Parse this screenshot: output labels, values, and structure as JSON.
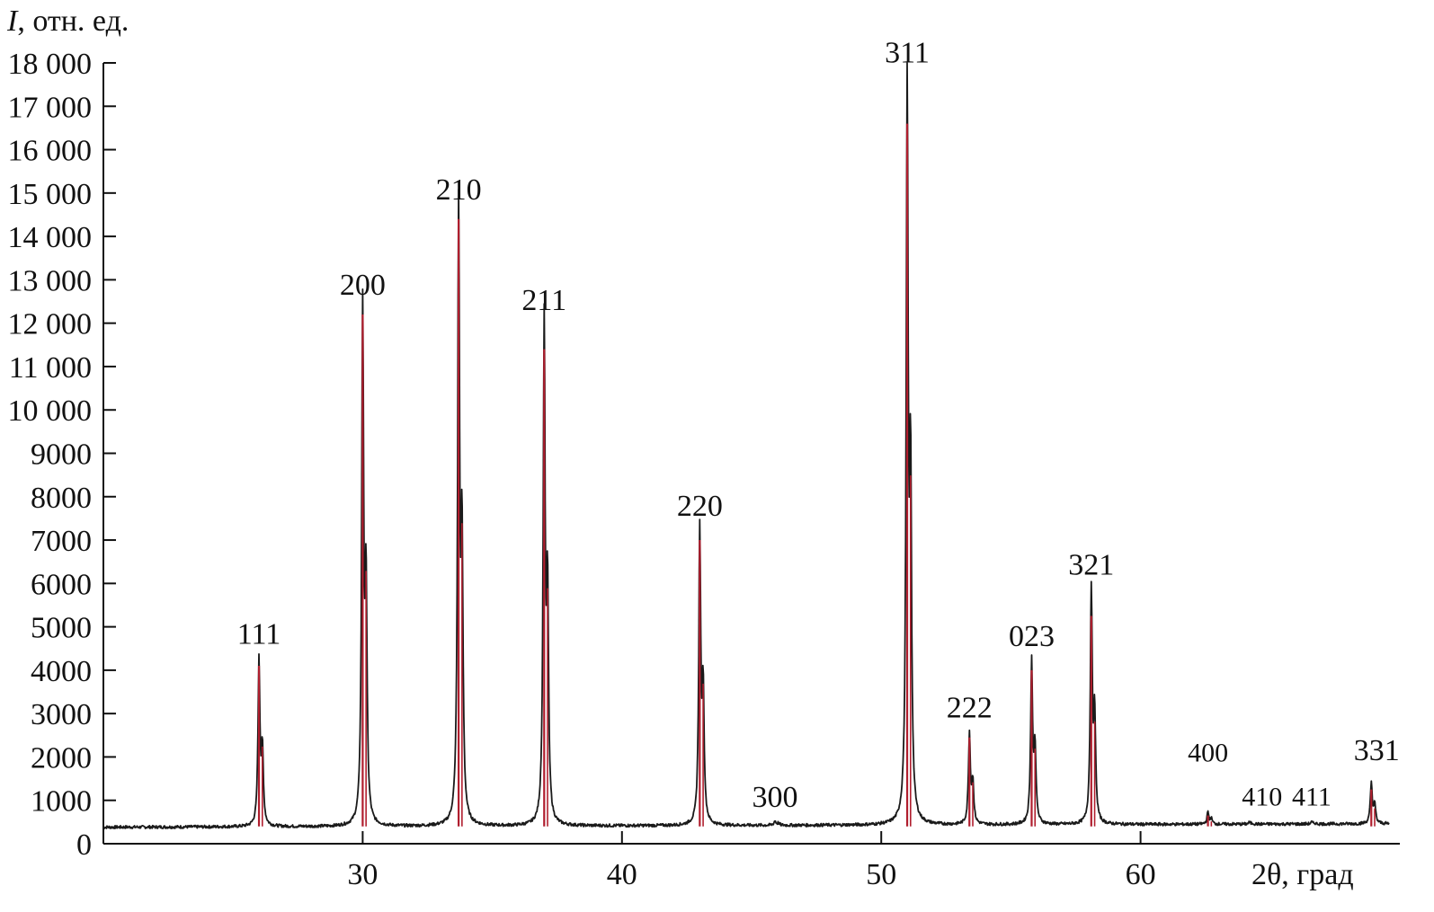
{
  "chart_data": {
    "type": "line",
    "xlabel": "2θ, град",
    "ylabel_italic": "I",
    "ylabel_rest": ", отн. ед.",
    "xlim": [
      20,
      70
    ],
    "ylim": [
      0,
      18000
    ],
    "x_ticks": [
      30,
      40,
      50,
      60
    ],
    "x_tick_labels": [
      "30",
      "40",
      "50",
      "60"
    ],
    "y_ticks": [
      0,
      1000,
      2000,
      3000,
      4000,
      5000,
      6000,
      7000,
      8000,
      9000,
      10000,
      11000,
      12000,
      13000,
      14000,
      15000,
      16000,
      17000,
      18000
    ],
    "y_tick_labels": [
      "0",
      "1000",
      "2000",
      "3000",
      "4000",
      "5000",
      "6000",
      "7000",
      "8000",
      "9000",
      "10 000",
      "11 000",
      "12 000",
      "13 000",
      "14 000",
      "15 000",
      "16 000",
      "17 000",
      "18 000"
    ],
    "grid": false,
    "baseline": 380,
    "series": [
      {
        "color": "#1a1a1a",
        "peaks": [
          {
            "x": 26.0,
            "y": 4150,
            "hkl": "111"
          },
          {
            "x": 30.0,
            "y": 12200,
            "hkl": "200"
          },
          {
            "x": 33.7,
            "y": 14400,
            "hkl": "210"
          },
          {
            "x": 37.0,
            "y": 11850,
            "hkl": "211"
          },
          {
            "x": 43.0,
            "y": 7100,
            "hkl": "220"
          },
          {
            "x": 45.9,
            "y": 480,
            "hkl": "300"
          },
          {
            "x": 51.0,
            "y": 17550,
            "hkl": "311"
          },
          {
            "x": 53.4,
            "y": 2450,
            "hkl": "222"
          },
          {
            "x": 55.8,
            "y": 4100,
            "hkl": "023"
          },
          {
            "x": 58.1,
            "y": 5750,
            "hkl": "321"
          },
          {
            "x": 62.6,
            "y": 650,
            "hkl": "400"
          },
          {
            "x": 64.2,
            "y": 420,
            "hkl": "410"
          },
          {
            "x": 66.6,
            "y": 420,
            "hkl": "411"
          },
          {
            "x": 68.9,
            "y": 1300,
            "hkl": "331"
          }
        ]
      },
      {
        "color": "#b01e2e",
        "sticks": [
          {
            "x": 26.0,
            "y": 4100
          },
          {
            "x": 30.0,
            "y": 12200
          },
          {
            "x": 33.7,
            "y": 14400
          },
          {
            "x": 37.0,
            "y": 11400
          },
          {
            "x": 43.0,
            "y": 7000
          },
          {
            "x": 51.0,
            "y": 16600
          },
          {
            "x": 53.4,
            "y": 2450
          },
          {
            "x": 55.8,
            "y": 4000
          },
          {
            "x": 58.1,
            "y": 5250
          },
          {
            "x": 62.6,
            "y": 650
          },
          {
            "x": 68.9,
            "y": 1250
          }
        ]
      }
    ],
    "peak_labels": [
      {
        "text": "111",
        "x": 26.0,
        "y": 4150
      },
      {
        "text": "200",
        "x": 30.0,
        "y": 12200
      },
      {
        "text": "210",
        "x": 33.7,
        "y": 14400
      },
      {
        "text": "211",
        "x": 37.0,
        "y": 11850
      },
      {
        "text": "220",
        "x": 43.0,
        "y": 7100
      },
      {
        "text": "300",
        "x": 45.9,
        "y": 480
      },
      {
        "text": "311",
        "x": 51.0,
        "y": 17550
      },
      {
        "text": "222",
        "x": 53.4,
        "y": 2450
      },
      {
        "text": "023",
        "x": 55.8,
        "y": 4100
      },
      {
        "text": "321",
        "x": 58.1,
        "y": 5750
      },
      {
        "text": "400",
        "x": 62.6,
        "y": 650
      },
      {
        "text": "410",
        "x": 64.2,
        "y": 420
      },
      {
        "text": "411",
        "x": 66.6,
        "y": 420
      },
      {
        "text": "331",
        "x": 68.9,
        "y": 1300
      }
    ]
  }
}
